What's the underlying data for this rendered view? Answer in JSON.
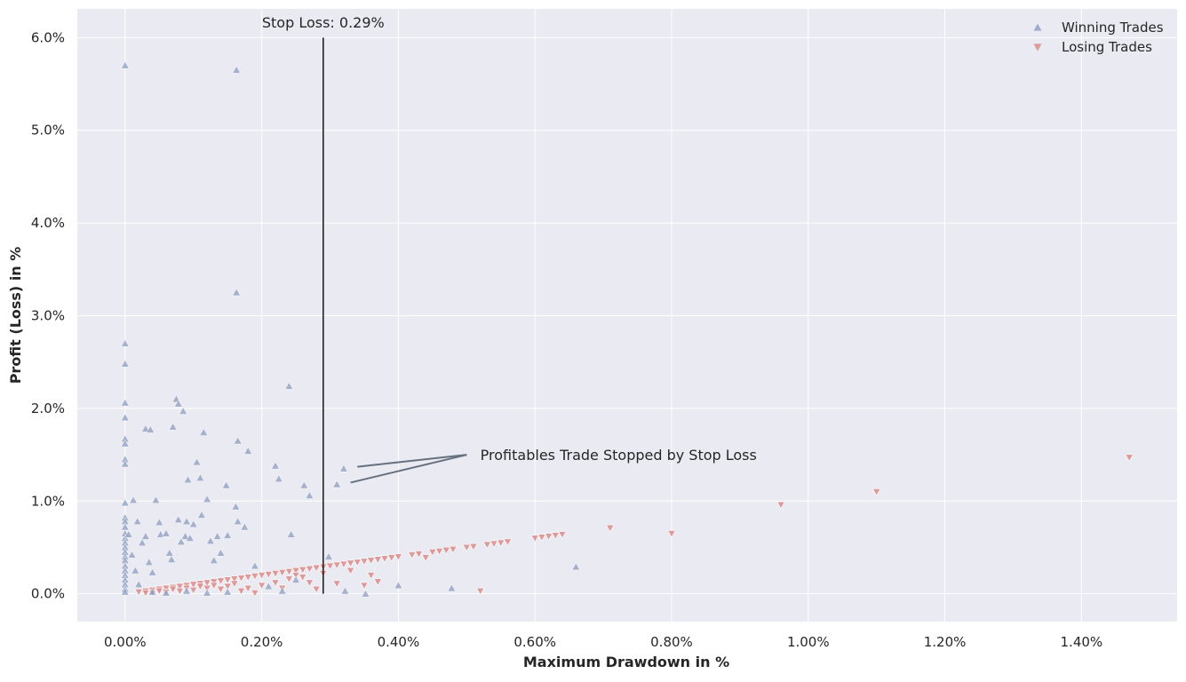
{
  "chart_data": {
    "type": "scatter",
    "title": "",
    "xlabel": "Maximum Drawdown in %",
    "ylabel": "Profit (Loss) in %",
    "xlim": [
      -0.0007,
      0.0154
    ],
    "ylim": [
      -0.003,
      0.0631
    ],
    "x_ticks": [
      0.0,
      0.002,
      0.004,
      0.006,
      0.008,
      0.01,
      0.012,
      0.014
    ],
    "x_tick_labels": [
      "0.00%",
      "0.20%",
      "0.40%",
      "0.60%",
      "0.80%",
      "1.00%",
      "1.20%",
      "1.40%"
    ],
    "y_ticks": [
      0.0,
      0.01,
      0.02,
      0.03,
      0.04,
      0.05,
      0.06
    ],
    "y_tick_labels": [
      "0.0%",
      "1.0%",
      "2.0%",
      "3.0%",
      "4.0%",
      "5.0%",
      "6.0%"
    ],
    "grid": true,
    "legend_position": "top-right",
    "colors": {
      "background": "#eaeaf2",
      "grid": "#ffffff",
      "winning": "#8c9cbf",
      "losing": "#d98c8c",
      "stop_line": "#222222",
      "annotation_arrow": "#66707e"
    },
    "stop_loss": {
      "x": 0.0029,
      "label": "Stop Loss: 0.29%"
    },
    "annotation": {
      "text": "Profitables Trade Stopped by Stop Loss",
      "text_at": [
        0.0052,
        0.015
      ],
      "arrow_tail": [
        0.005,
        0.015
      ],
      "targets": [
        [
          0.0034,
          0.0137
        ],
        [
          0.0033,
          0.012
        ]
      ]
    },
    "series": [
      {
        "name": "Winning Trades",
        "marker": "triangle-up",
        "points": [
          [
            0.0,
            0.057
          ],
          [
            0.00163,
            0.0565
          ],
          [
            0.00163,
            0.0325
          ],
          [
            0.0,
            0.027
          ],
          [
            0.0,
            0.0248
          ],
          [
            0.0,
            0.0206
          ],
          [
            0.0,
            0.019
          ],
          [
            0.0,
            0.0167
          ],
          [
            0.0,
            0.0162
          ],
          [
            0.0,
            0.0145
          ],
          [
            0.0,
            0.014
          ],
          [
            0.0,
            0.0098
          ],
          [
            0.0,
            0.0082
          ],
          [
            0.0,
            0.0078
          ],
          [
            0.0,
            0.0072
          ],
          [
            0.0,
            0.0065
          ],
          [
            0.0,
            0.006
          ],
          [
            0.0,
            0.0055
          ],
          [
            0.0,
            0.005
          ],
          [
            0.0,
            0.0045
          ],
          [
            0.0,
            0.004
          ],
          [
            0.0,
            0.0036
          ],
          [
            0.0,
            0.003
          ],
          [
            0.0,
            0.0025
          ],
          [
            0.0,
            0.002
          ],
          [
            0.0,
            0.0015
          ],
          [
            0.0,
            0.001
          ],
          [
            0.0,
            0.0005
          ],
          [
            0.0,
            0.0002
          ],
          [
            5e-05,
            0.0064
          ],
          [
            0.0001,
            0.0042
          ],
          [
            0.00015,
            0.0025
          ],
          [
            0.0002,
            0.001
          ],
          [
            0.00012,
            0.0101
          ],
          [
            0.00018,
            0.0078
          ],
          [
            0.00025,
            0.0055
          ],
          [
            0.0003,
            0.0062
          ],
          [
            0.00035,
            0.0034
          ],
          [
            0.0004,
            0.0023
          ],
          [
            0.0003,
            0.0178
          ],
          [
            0.00037,
            0.0177
          ],
          [
            0.00045,
            0.0101
          ],
          [
            0.0005,
            0.0077
          ],
          [
            0.00052,
            0.0064
          ],
          [
            0.0006,
            0.0065
          ],
          [
            0.00065,
            0.0044
          ],
          [
            0.00068,
            0.0037
          ],
          [
            0.0007,
            0.018
          ],
          [
            0.00075,
            0.021
          ],
          [
            0.00078,
            0.0205
          ],
          [
            0.00085,
            0.0197
          ],
          [
            0.00078,
            0.008
          ],
          [
            0.00082,
            0.0056
          ],
          [
            0.00088,
            0.0062
          ],
          [
            0.0009,
            0.0078
          ],
          [
            0.00092,
            0.0123
          ],
          [
            0.00095,
            0.006
          ],
          [
            0.001,
            0.0075
          ],
          [
            0.00105,
            0.0142
          ],
          [
            0.0011,
            0.0125
          ],
          [
            0.00115,
            0.0174
          ],
          [
            0.00112,
            0.0085
          ],
          [
            0.0012,
            0.0102
          ],
          [
            0.00125,
            0.0057
          ],
          [
            0.0013,
            0.0036
          ],
          [
            0.00135,
            0.0062
          ],
          [
            0.0014,
            0.0044
          ],
          [
            0.00148,
            0.0117
          ],
          [
            0.0015,
            0.0063
          ],
          [
            0.00162,
            0.0094
          ],
          [
            0.00165,
            0.0165
          ],
          [
            0.00165,
            0.0078
          ],
          [
            0.00175,
            0.0072
          ],
          [
            0.0018,
            0.0154
          ],
          [
            0.0019,
            0.003
          ],
          [
            0.0022,
            0.0138
          ],
          [
            0.00225,
            0.0124
          ],
          [
            0.0024,
            0.0224
          ],
          [
            0.00243,
            0.0064
          ],
          [
            0.00262,
            0.0117
          ],
          [
            0.0027,
            0.0106
          ],
          [
            0.00298,
            0.004
          ],
          [
            0.0031,
            0.0118
          ],
          [
            0.0032,
            0.0135
          ],
          [
            0.00322,
            0.0003
          ],
          [
            0.00352,
            0.0
          ],
          [
            0.004,
            0.0009
          ],
          [
            0.00478,
            0.0006
          ],
          [
            0.0066,
            0.0029
          ],
          [
            0.0012,
            0.0001
          ],
          [
            0.0009,
            0.0003
          ],
          [
            0.0006,
            0.0001
          ],
          [
            0.0004,
            0.0002
          ],
          [
            0.0015,
            0.0002
          ],
          [
            0.0025,
            0.0015
          ],
          [
            0.0021,
            0.0008
          ],
          [
            0.0023,
            0.0003
          ]
        ]
      },
      {
        "name": "Losing Trades",
        "marker": "triangle-down",
        "points": [
          [
            0.0002,
            0.0002
          ],
          [
            0.0003,
            0.0003
          ],
          [
            0.0004,
            0.0004
          ],
          [
            0.0005,
            0.0005
          ],
          [
            0.0006,
            0.0006
          ],
          [
            0.0007,
            0.0007
          ],
          [
            0.0008,
            0.0008
          ],
          [
            0.0009,
            0.0009
          ],
          [
            0.001,
            0.001
          ],
          [
            0.0011,
            0.0011
          ],
          [
            0.0012,
            0.0012
          ],
          [
            0.0013,
            0.0013
          ],
          [
            0.0014,
            0.0014
          ],
          [
            0.0015,
            0.0015
          ],
          [
            0.0016,
            0.0016
          ],
          [
            0.0017,
            0.0017
          ],
          [
            0.0018,
            0.0018
          ],
          [
            0.0019,
            0.0019
          ],
          [
            0.002,
            0.002
          ],
          [
            0.0021,
            0.0021
          ],
          [
            0.0022,
            0.0022
          ],
          [
            0.0023,
            0.0023
          ],
          [
            0.0024,
            0.0024
          ],
          [
            0.0025,
            0.0025
          ],
          [
            0.0026,
            0.0026
          ],
          [
            0.0027,
            0.0027
          ],
          [
            0.0028,
            0.0028
          ],
          [
            0.0029,
            0.0029
          ],
          [
            0.003,
            0.003
          ],
          [
            0.0031,
            0.0031
          ],
          [
            0.0032,
            0.0032
          ],
          [
            0.0033,
            0.0033
          ],
          [
            0.0034,
            0.0034
          ],
          [
            0.0035,
            0.0035
          ],
          [
            0.0036,
            0.0036
          ],
          [
            0.0037,
            0.0037
          ],
          [
            0.0038,
            0.0038
          ],
          [
            0.0039,
            0.0039
          ],
          [
            0.004,
            0.004
          ],
          [
            0.0042,
            0.0042
          ],
          [
            0.0043,
            0.0043
          ],
          [
            0.0045,
            0.0045
          ],
          [
            0.0046,
            0.0046
          ],
          [
            0.0047,
            0.0047
          ],
          [
            0.0048,
            0.0048
          ],
          [
            0.005,
            0.005
          ],
          [
            0.0051,
            0.0051
          ],
          [
            0.0053,
            0.0053
          ],
          [
            0.0054,
            0.0054
          ],
          [
            0.0055,
            0.0055
          ],
          [
            0.0056,
            0.0056
          ],
          [
            0.006,
            0.006
          ],
          [
            0.0061,
            0.0061
          ],
          [
            0.0062,
            0.0062
          ],
          [
            0.0063,
            0.0063
          ],
          [
            0.0064,
            0.0064
          ],
          [
            0.0071,
            0.0071
          ],
          [
            0.008,
            0.0065
          ],
          [
            0.0096,
            0.0096
          ],
          [
            0.011,
            0.011
          ],
          [
            0.0147,
            0.0147
          ],
          [
            0.0044,
            0.0039
          ],
          [
            0.0037,
            0.0013
          ],
          [
            0.0036,
            0.002
          ],
          [
            0.0035,
            0.0009
          ],
          [
            0.0031,
            0.0011
          ],
          [
            0.0028,
            0.0005
          ],
          [
            0.0052,
            0.0003
          ],
          [
            0.0027,
            0.0012
          ],
          [
            0.0026,
            0.0018
          ],
          [
            0.0024,
            0.0016
          ],
          [
            0.0022,
            0.0012
          ],
          [
            0.002,
            0.0009
          ],
          [
            0.0018,
            0.0006
          ],
          [
            0.0016,
            0.0011
          ],
          [
            0.0015,
            0.0008
          ],
          [
            0.0014,
            0.0005
          ],
          [
            0.0013,
            0.0009
          ],
          [
            0.0012,
            0.0006
          ],
          [
            0.0011,
            0.0008
          ],
          [
            0.001,
            0.0004
          ],
          [
            0.0009,
            0.0006
          ],
          [
            0.0008,
            0.0003
          ],
          [
            0.0007,
            0.0005
          ],
          [
            0.0006,
            0.0002
          ],
          [
            0.0005,
            0.0003
          ],
          [
            0.0004,
            0.0001
          ],
          [
            0.0003,
            0.0001
          ],
          [
            0.0017,
            0.0003
          ],
          [
            0.0019,
            0.0001
          ],
          [
            0.0023,
            0.0006
          ],
          [
            0.0033,
            0.0025
          ],
          [
            0.0029,
            0.0022
          ],
          [
            0.0025,
            0.002
          ]
        ]
      }
    ]
  }
}
